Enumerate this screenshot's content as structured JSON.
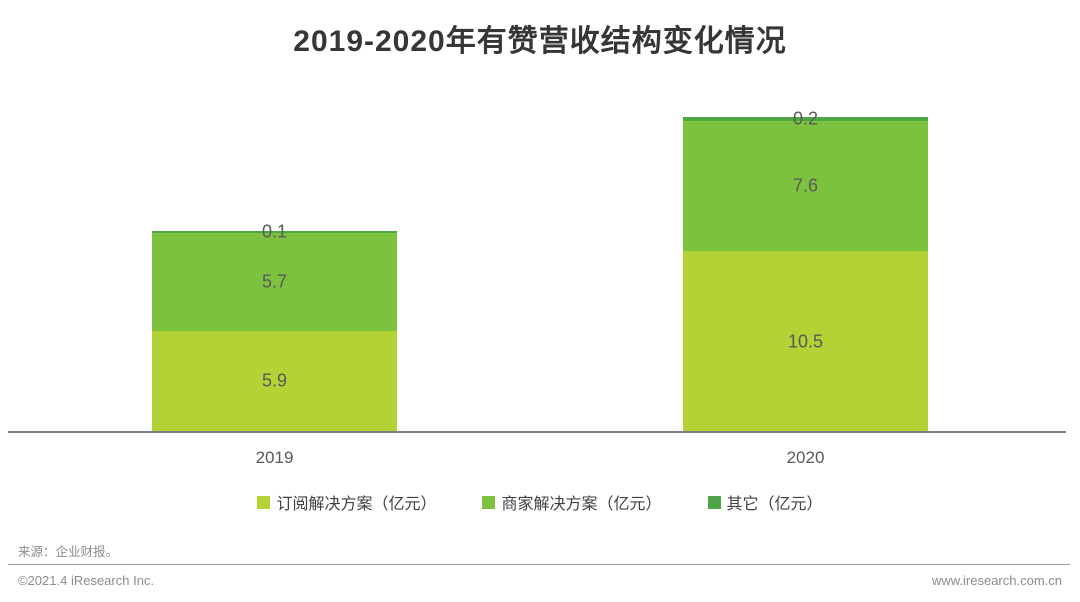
{
  "title": "2019-2020年有赞营收结构变化情况",
  "chart_data": {
    "type": "bar",
    "stacked": true,
    "title": "2019-2020年有赞营收结构变化情况",
    "categories": [
      "2019",
      "2020"
    ],
    "series": [
      {
        "name": "订阅解决方案（亿元）",
        "color": "#b2d235",
        "values": [
          5.9,
          10.5
        ]
      },
      {
        "name": "商家解决方案（亿元）",
        "color": "#7dc23e",
        "values": [
          5.7,
          7.6
        ]
      },
      {
        "name": "其它（亿元）",
        "color": "#4ea546",
        "values": [
          0.1,
          0.2
        ]
      }
    ],
    "totals": [
      11.7,
      18.3
    ],
    "xlabel": "",
    "ylabel": "",
    "ylim": [
      0,
      18.3
    ],
    "grid": false,
    "legend_position": "bottom",
    "data_labels": true
  },
  "footer": {
    "source_note": "来源：企业财报。",
    "copyright": "©2021.4 iResearch Inc.",
    "website": "www.iresearch.com.cn"
  }
}
